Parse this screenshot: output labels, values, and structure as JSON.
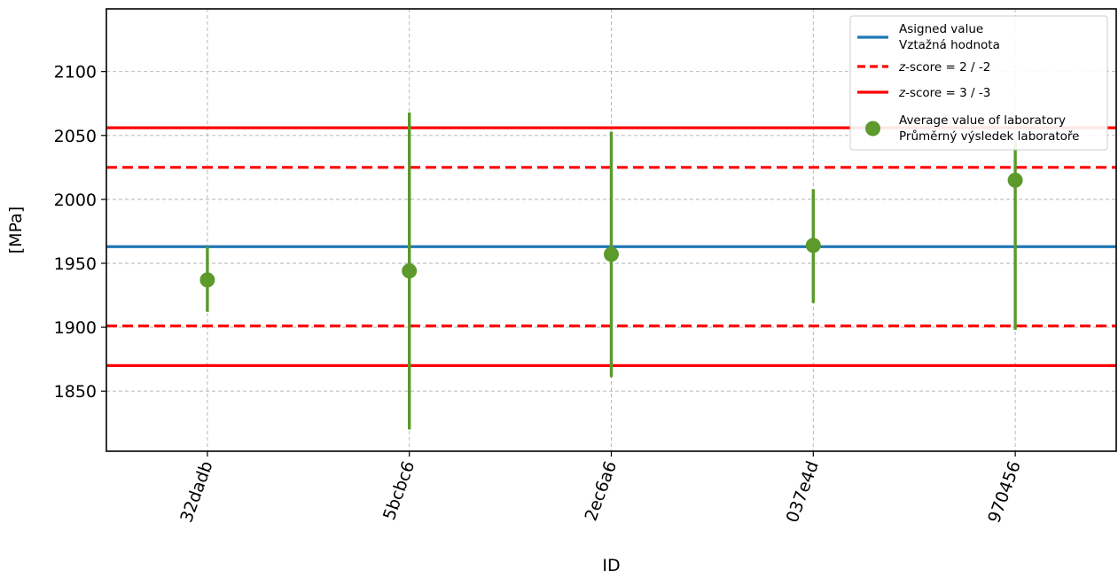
{
  "chart_data": {
    "type": "scatter",
    "xlabel": "ID",
    "ylabel": "[MPa]",
    "categories": [
      "32dadb",
      "5bcbc6",
      "2ec6a6",
      "037e4d",
      "970456"
    ],
    "ylim": [
      1803,
      2149
    ],
    "yticks": [
      1850,
      1900,
      1950,
      2000,
      2050,
      2100
    ],
    "grid": true,
    "legend_position": "top-right",
    "assigned_value": 1963,
    "z2_lines": [
      1901,
      2025
    ],
    "z3_lines": [
      1870,
      2056
    ],
    "series": [
      {
        "values": [
          1937,
          1944,
          1957,
          1964,
          2015
        ],
        "error_low": [
          1912,
          1820,
          1861,
          1919,
          1898
        ],
        "error_high": [
          1963,
          2068,
          2053,
          2008,
          2045
        ]
      }
    ],
    "legend": [
      {
        "lines": [
          "Asigned value",
          "Vztažná hodnota"
        ],
        "style": "solid",
        "color": "#1f77b4"
      },
      {
        "lines": [
          "z-score = 2 / -2"
        ],
        "italic_prefix": "z",
        "rest": "-score = 2 / -2",
        "style": "dashed",
        "color": "#ff0000"
      },
      {
        "lines": [
          "z-score = 3 / -3"
        ],
        "italic_prefix": "z",
        "rest": "-score = 3 / -3",
        "style": "solid",
        "color": "#ff0000"
      },
      {
        "lines": [
          "Average value of laboratory",
          "Průměrný výsledek laboratoře"
        ],
        "style": "marker",
        "color": "#5b9a2b"
      }
    ],
    "colors": {
      "assigned": "#1f77b4",
      "zscore": "#ff0000",
      "points": "#5b9a2b",
      "grid": "#b0b0b0"
    }
  }
}
